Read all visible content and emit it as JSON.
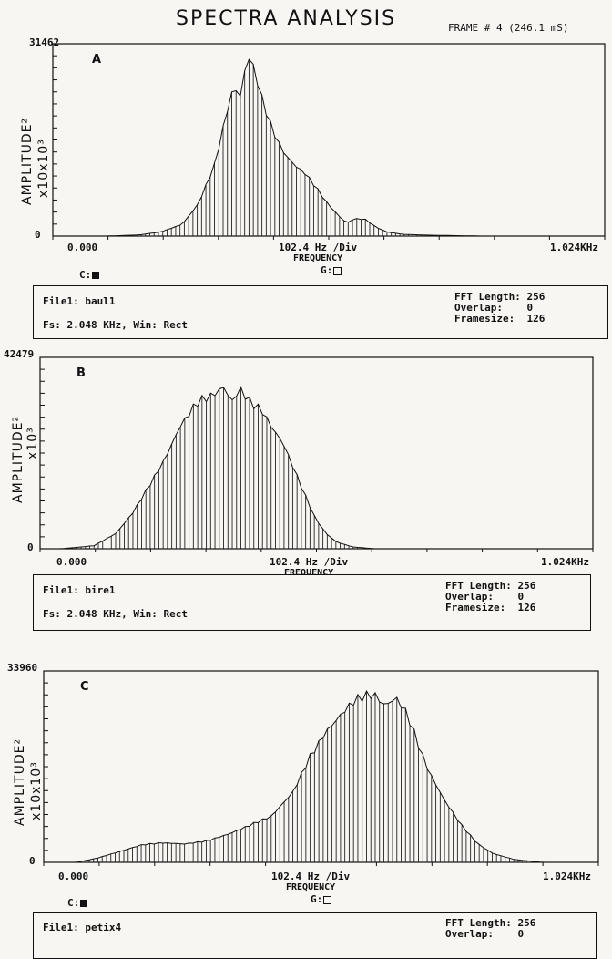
{
  "header": {
    "title": "SPECTRA ANALYSIS",
    "frame": "FRAME # 4 (246.1 mS)"
  },
  "y_axis_label_1": "AMPLITUDE²",
  "y_axis_label_2": "x10x10³",
  "x_axis": {
    "start": "0.000",
    "mid": "102.4 Hz  /Div",
    "end": "1.024KHz",
    "label": "FREQUENCY"
  },
  "markers": {
    "c_label": "C:",
    "g_label": "G:"
  },
  "panels": [
    {
      "letter": "A",
      "ymax_label": "31462",
      "ymin_label": "0",
      "y_axis_label_2": "x10x10³",
      "info": {
        "file": "File1: baul1",
        "fs": "Fs: 2.048 KHz, Win: Rect",
        "fft_length": "FFT Length: 256",
        "overlap": "Overlap:    0",
        "framesize": "Framesize:  126"
      }
    },
    {
      "letter": "B",
      "ymax_label": "42479",
      "ymin_label": "0",
      "y_axis_label_2": "x10³",
      "info": {
        "file": "File1: bire1",
        "fs": "Fs: 2.048 KHz, Win: Rect",
        "fft_length": "FFT Length: 256",
        "overlap": "Overlap:    0",
        "framesize": "Framesize:  126"
      }
    },
    {
      "letter": "C",
      "ymax_label": "33960",
      "ymin_label": "0",
      "y_axis_label_2": "x10x10³",
      "info": {
        "file": "File1: petix4",
        "fft_length": "FFT Length: 256",
        "overlap": "Overlap:    0"
      }
    }
  ],
  "chart_data": [
    {
      "type": "bar",
      "xlim": [
        0,
        1024
      ],
      "ylim": [
        0,
        31462
      ],
      "xlabel": "FREQUENCY",
      "ylabel": "AMPLITUDE²",
      "grid": false,
      "peaks": [
        {
          "x": 0,
          "y": 0
        },
        {
          "x": 100,
          "y": 0
        },
        {
          "x": 160,
          "y": 200
        },
        {
          "x": 200,
          "y": 700
        },
        {
          "x": 240,
          "y": 2000
        },
        {
          "x": 270,
          "y": 5500
        },
        {
          "x": 300,
          "y": 12000
        },
        {
          "x": 320,
          "y": 20000
        },
        {
          "x": 335,
          "y": 25500
        },
        {
          "x": 348,
          "y": 24000
        },
        {
          "x": 362,
          "y": 31000
        },
        {
          "x": 375,
          "y": 28000
        },
        {
          "x": 390,
          "y": 22500
        },
        {
          "x": 410,
          "y": 17500
        },
        {
          "x": 430,
          "y": 14000
        },
        {
          "x": 450,
          "y": 12000
        },
        {
          "x": 470,
          "y": 10500
        },
        {
          "x": 490,
          "y": 8000
        },
        {
          "x": 510,
          "y": 5500
        },
        {
          "x": 530,
          "y": 3500
        },
        {
          "x": 545,
          "y": 2200
        },
        {
          "x": 560,
          "y": 3000
        },
        {
          "x": 580,
          "y": 2800
        },
        {
          "x": 600,
          "y": 1500
        },
        {
          "x": 620,
          "y": 700
        },
        {
          "x": 650,
          "y": 300
        },
        {
          "x": 700,
          "y": 150
        },
        {
          "x": 800,
          "y": 0
        },
        {
          "x": 1024,
          "y": 0
        }
      ]
    },
    {
      "type": "bar",
      "xlim": [
        0,
        1024
      ],
      "ylim": [
        0,
        42479
      ],
      "xlabel": "FREQUENCY",
      "ylabel": "AMPLITUDE²",
      "grid": false,
      "peaks": [
        {
          "x": 0,
          "y": 0
        },
        {
          "x": 40,
          "y": 0
        },
        {
          "x": 100,
          "y": 700
        },
        {
          "x": 140,
          "y": 3500
        },
        {
          "x": 170,
          "y": 8000
        },
        {
          "x": 200,
          "y": 14000
        },
        {
          "x": 230,
          "y": 20500
        },
        {
          "x": 260,
          "y": 28500
        },
        {
          "x": 290,
          "y": 33500
        },
        {
          "x": 320,
          "y": 35500
        },
        {
          "x": 340,
          "y": 37500
        },
        {
          "x": 355,
          "y": 34000
        },
        {
          "x": 370,
          "y": 37000
        },
        {
          "x": 390,
          "y": 33500
        },
        {
          "x": 410,
          "y": 32000
        },
        {
          "x": 430,
          "y": 28000
        },
        {
          "x": 450,
          "y": 24500
        },
        {
          "x": 470,
          "y": 18500
        },
        {
          "x": 490,
          "y": 12500
        },
        {
          "x": 510,
          "y": 7000
        },
        {
          "x": 530,
          "y": 3500
        },
        {
          "x": 550,
          "y": 1500
        },
        {
          "x": 580,
          "y": 400
        },
        {
          "x": 620,
          "y": 0
        },
        {
          "x": 1024,
          "y": 0
        }
      ]
    },
    {
      "type": "bar",
      "xlim": [
        0,
        1024
      ],
      "ylim": [
        0,
        33960
      ],
      "xlabel": "FREQUENCY",
      "ylabel": "AMPLITUDE²",
      "grid": false,
      "peaks": [
        {
          "x": 0,
          "y": 0
        },
        {
          "x": 60,
          "y": 0
        },
        {
          "x": 100,
          "y": 800
        },
        {
          "x": 140,
          "y": 2000
        },
        {
          "x": 180,
          "y": 3200
        },
        {
          "x": 220,
          "y": 3600
        },
        {
          "x": 260,
          "y": 3400
        },
        {
          "x": 300,
          "y": 3900
        },
        {
          "x": 340,
          "y": 5200
        },
        {
          "x": 380,
          "y": 6800
        },
        {
          "x": 420,
          "y": 8500
        },
        {
          "x": 460,
          "y": 13000
        },
        {
          "x": 490,
          "y": 19000
        },
        {
          "x": 520,
          "y": 24000
        },
        {
          "x": 550,
          "y": 27500
        },
        {
          "x": 570,
          "y": 29500
        },
        {
          "x": 590,
          "y": 30500
        },
        {
          "x": 610,
          "y": 31000
        },
        {
          "x": 630,
          "y": 29000
        },
        {
          "x": 650,
          "y": 30500
        },
        {
          "x": 670,
          "y": 27500
        },
        {
          "x": 690,
          "y": 22000
        },
        {
          "x": 710,
          "y": 17000
        },
        {
          "x": 740,
          "y": 11500
        },
        {
          "x": 770,
          "y": 7000
        },
        {
          "x": 800,
          "y": 3500
        },
        {
          "x": 830,
          "y": 1600
        },
        {
          "x": 870,
          "y": 500
        },
        {
          "x": 920,
          "y": 0
        },
        {
          "x": 1024,
          "y": 0
        }
      ]
    }
  ]
}
